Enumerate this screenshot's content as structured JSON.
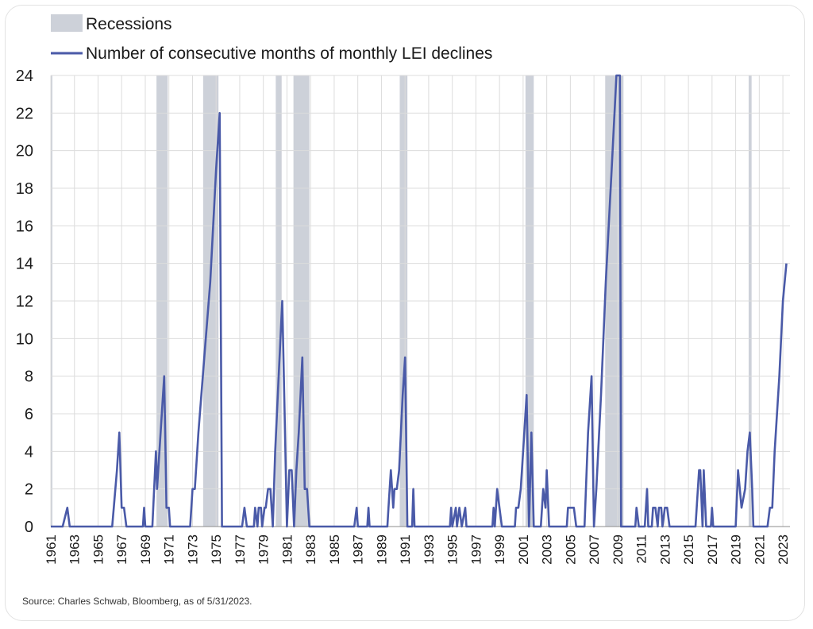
{
  "chart_data": {
    "type": "line",
    "legend": {
      "position": "top-left",
      "entries": [
        {
          "label": "Recessions",
          "kind": "shaded-band",
          "color": "#cdd1d9"
        },
        {
          "label": "Number of consecutive months of monthly LEI declines",
          "kind": "line",
          "color": "#4a5aa8"
        }
      ]
    },
    "series": [
      {
        "name": "Number of consecutive months of monthly LEI declines",
        "color": "#4a5aa8",
        "points": [
          [
            1961.0,
            0
          ],
          [
            1962.0,
            0
          ],
          [
            1962.4,
            1
          ],
          [
            1962.6,
            0
          ],
          [
            1966.2,
            0
          ],
          [
            1966.6,
            3
          ],
          [
            1966.8,
            5
          ],
          [
            1967.0,
            1
          ],
          [
            1967.2,
            1
          ],
          [
            1967.4,
            0
          ],
          [
            1968.8,
            0
          ],
          [
            1968.9,
            1
          ],
          [
            1969.0,
            0
          ],
          [
            1969.6,
            0
          ],
          [
            1969.9,
            4
          ],
          [
            1970.0,
            2
          ],
          [
            1970.4,
            6
          ],
          [
            1970.6,
            8
          ],
          [
            1970.8,
            1
          ],
          [
            1971.0,
            1
          ],
          [
            1971.1,
            0
          ],
          [
            1972.8,
            0
          ],
          [
            1973.0,
            2
          ],
          [
            1973.2,
            2
          ],
          [
            1973.5,
            5
          ],
          [
            1974.0,
            9
          ],
          [
            1974.5,
            13
          ],
          [
            1975.0,
            19
          ],
          [
            1975.3,
            22
          ],
          [
            1975.5,
            0
          ],
          [
            1977.2,
            0
          ],
          [
            1977.4,
            1
          ],
          [
            1977.6,
            0
          ],
          [
            1978.2,
            0
          ],
          [
            1978.3,
            1
          ],
          [
            1978.5,
            0
          ],
          [
            1978.6,
            1
          ],
          [
            1978.8,
            1
          ],
          [
            1978.9,
            0
          ],
          [
            1979.1,
            1
          ],
          [
            1979.2,
            1
          ],
          [
            1979.4,
            2
          ],
          [
            1979.6,
            2
          ],
          [
            1979.8,
            0
          ],
          [
            1980.0,
            4
          ],
          [
            1980.3,
            8
          ],
          [
            1980.6,
            12
          ],
          [
            1980.8,
            6
          ],
          [
            1981.0,
            0
          ],
          [
            1981.2,
            3
          ],
          [
            1981.4,
            3
          ],
          [
            1981.6,
            0
          ],
          [
            1981.8,
            3
          ],
          [
            1982.0,
            5
          ],
          [
            1982.3,
            9
          ],
          [
            1982.5,
            2
          ],
          [
            1982.7,
            2
          ],
          [
            1982.9,
            0
          ],
          [
            1986.7,
            0
          ],
          [
            1986.9,
            1
          ],
          [
            1987.0,
            0
          ],
          [
            1987.8,
            0
          ],
          [
            1987.9,
            1
          ],
          [
            1988.0,
            0
          ],
          [
            1989.5,
            0
          ],
          [
            1989.6,
            1
          ],
          [
            1989.8,
            3
          ],
          [
            1990.0,
            1
          ],
          [
            1990.1,
            2
          ],
          [
            1990.3,
            2
          ],
          [
            1990.5,
            3
          ],
          [
            1990.8,
            7
          ],
          [
            1991.0,
            9
          ],
          [
            1991.2,
            0
          ],
          [
            1991.6,
            0
          ],
          [
            1991.7,
            2
          ],
          [
            1991.8,
            0
          ],
          [
            1994.8,
            0
          ],
          [
            1994.9,
            1
          ],
          [
            1995.0,
            0
          ],
          [
            1995.3,
            1
          ],
          [
            1995.4,
            0
          ],
          [
            1995.6,
            1
          ],
          [
            1995.8,
            0
          ],
          [
            1996.1,
            1
          ],
          [
            1996.2,
            0
          ],
          [
            1998.4,
            0
          ],
          [
            1998.5,
            1
          ],
          [
            1998.6,
            0
          ],
          [
            1998.8,
            2
          ],
          [
            1999.0,
            1
          ],
          [
            1999.2,
            0
          ],
          [
            2000.3,
            0
          ],
          [
            2000.4,
            1
          ],
          [
            2000.6,
            1
          ],
          [
            2000.8,
            2
          ],
          [
            2001.0,
            4
          ],
          [
            2001.3,
            7
          ],
          [
            2001.5,
            0
          ],
          [
            2001.7,
            5
          ],
          [
            2001.9,
            0
          ],
          [
            2002.5,
            0
          ],
          [
            2002.7,
            2
          ],
          [
            2002.9,
            1
          ],
          [
            2003.0,
            3
          ],
          [
            2003.2,
            0
          ],
          [
            2004.7,
            0
          ],
          [
            2004.8,
            1
          ],
          [
            2005.0,
            1
          ],
          [
            2005.3,
            1
          ],
          [
            2005.5,
            0
          ],
          [
            2006.2,
            0
          ],
          [
            2006.5,
            5
          ],
          [
            2006.8,
            8
          ],
          [
            2007.0,
            0
          ],
          [
            2007.2,
            2
          ],
          [
            2007.6,
            7
          ],
          [
            2008.0,
            13
          ],
          [
            2008.5,
            19
          ],
          [
            2008.9,
            24
          ],
          [
            2009.2,
            24
          ],
          [
            2009.3,
            0
          ],
          [
            2010.5,
            0
          ],
          [
            2010.6,
            1
          ],
          [
            2010.8,
            0
          ],
          [
            2011.3,
            0
          ],
          [
            2011.5,
            2
          ],
          [
            2011.6,
            0
          ],
          [
            2011.9,
            0
          ],
          [
            2012.0,
            1
          ],
          [
            2012.2,
            1
          ],
          [
            2012.4,
            0
          ],
          [
            2012.5,
            1
          ],
          [
            2012.7,
            1
          ],
          [
            2012.8,
            0
          ],
          [
            2013.0,
            1
          ],
          [
            2013.2,
            1
          ],
          [
            2013.4,
            0
          ],
          [
            2015.6,
            0
          ],
          [
            2015.9,
            3
          ],
          [
            2016.0,
            3
          ],
          [
            2016.2,
            0
          ],
          [
            2016.3,
            3
          ],
          [
            2016.5,
            0
          ],
          [
            2016.9,
            0
          ],
          [
            2017.0,
            1
          ],
          [
            2017.1,
            0
          ],
          [
            2019.0,
            0
          ],
          [
            2019.2,
            3
          ],
          [
            2019.5,
            1
          ],
          [
            2019.8,
            2
          ],
          [
            2020.0,
            4
          ],
          [
            2020.2,
            5
          ],
          [
            2020.4,
            2
          ],
          [
            2020.5,
            0
          ],
          [
            2021.7,
            0
          ],
          [
            2021.9,
            1
          ],
          [
            2022.1,
            1
          ],
          [
            2022.3,
            4
          ],
          [
            2022.7,
            8
          ],
          [
            2023.0,
            12
          ],
          [
            2023.3,
            14
          ]
        ]
      }
    ],
    "recessions": [
      [
        1960.35,
        1961.1
      ],
      [
        1969.95,
        1970.9
      ],
      [
        1973.9,
        1975.2
      ],
      [
        1980.05,
        1980.55
      ],
      [
        1981.55,
        1982.9
      ],
      [
        1990.55,
        1991.2
      ],
      [
        2001.2,
        2001.9
      ],
      [
        2007.95,
        2009.5
      ],
      [
        2020.1,
        2020.35
      ]
    ],
    "xlim": [
      1961,
      2023.6
    ],
    "ylim": [
      0,
      24
    ],
    "x_ticks": [
      "1961",
      "1963",
      "1965",
      "1967",
      "1969",
      "1971",
      "1973",
      "1975",
      "1977",
      "1979",
      "1981",
      "1983",
      "1985",
      "1987",
      "1989",
      "1991",
      "1993",
      "1995",
      "1997",
      "1999",
      "2001",
      "2003",
      "2005",
      "2007",
      "2009",
      "2011",
      "2013",
      "2015",
      "2017",
      "2019",
      "2021",
      "2023"
    ],
    "y_ticks": [
      0,
      2,
      4,
      6,
      8,
      10,
      12,
      14,
      16,
      18,
      20,
      22,
      24
    ],
    "grid": "vertical-and-horizontal",
    "title": "",
    "xlabel": "",
    "ylabel": ""
  },
  "source_note": "Source: Charles Schwab, Bloomberg, as of 5/31/2023."
}
